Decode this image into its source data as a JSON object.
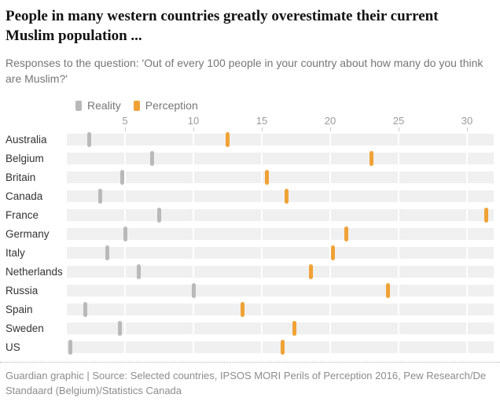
{
  "header": {
    "title": "People in many western countries greatly overestimate their current Muslim population ...",
    "subtitle": "Responses to the question: 'Out of every 100 people in your country about how many do you think are Muslim?'"
  },
  "legend": {
    "items": [
      {
        "label": "Reality",
        "color": "#b9b9b9"
      },
      {
        "label": "Perception",
        "color": "#f0a236"
      }
    ]
  },
  "chart_data": {
    "type": "scatter",
    "variant": "horizontal-dot-strip-plot",
    "title": "People in many western countries greatly overestimate their current Muslim population ...",
    "subtitle": "Responses to the question: 'Out of every 100 people in your country about how many do you think are Muslim?'",
    "categories": [
      "Australia",
      "Belgium",
      "Britain",
      "Canada",
      "France",
      "Germany",
      "Italy",
      "Netherlands",
      "Russia",
      "Spain",
      "Sweden",
      "US"
    ],
    "series": [
      {
        "name": "Reality",
        "color": "#b9b9b9",
        "values": [
          2.4,
          7,
          4.8,
          3.2,
          7.5,
          5,
          3.7,
          6,
          10,
          2.1,
          4.6,
          1
        ]
      },
      {
        "name": "Perception",
        "color": "#f0a236",
        "values": [
          12.5,
          23,
          15.4,
          16.8,
          31.4,
          21.2,
          20.2,
          18.6,
          24.2,
          13.6,
          17.4,
          16.5
        ]
      }
    ],
    "x_ticks": [
      5,
      10,
      15,
      20,
      25,
      30
    ],
    "xlim": [
      0.75,
      32
    ],
    "xlabel": "",
    "ylabel": "",
    "unit": "people out of every 100",
    "grid": "white vertical gridlines over light-gray row bands",
    "legend_position": "top-left above axis",
    "band_color": "#f0f0f0"
  },
  "footer": {
    "text": "Guardian graphic | Source: Selected countries, IPSOS MORI Perils of Perception 2016, Pew Research/De Standaard (Belgium)/Statistics Canada"
  }
}
